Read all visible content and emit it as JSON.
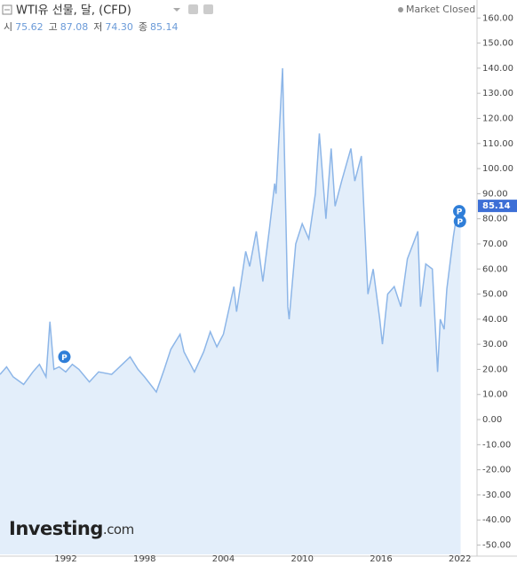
{
  "chart_data": {
    "type": "area",
    "title": "WTI유 선물, 달, (CFD)",
    "status": "Market Closed",
    "ohlc": [
      {
        "label": "시",
        "value": "75.62"
      },
      {
        "label": "고",
        "value": "87.08"
      },
      {
        "label": "저",
        "value": "74.30"
      },
      {
        "label": "종",
        "value": "85.14"
      }
    ],
    "last_price": {
      "value": 85.14,
      "label": "85.14"
    },
    "logo": {
      "main": "Investing",
      "suffix": ".com"
    },
    "color": "#8db6e8",
    "fill": "#e3eefa",
    "x": [
      1987.0,
      1987.5,
      1988.0,
      1988.8,
      1989.5,
      1990.0,
      1990.5,
      1990.8,
      1991.1,
      1991.5,
      1992.0,
      1992.5,
      1993.0,
      1993.8,
      1994.5,
      1995.5,
      1996.3,
      1996.9,
      1997.5,
      1998.0,
      1998.9,
      1999.5,
      2000.0,
      2000.7,
      2001.0,
      2001.8,
      2002.5,
      2003.0,
      2003.5,
      2004.0,
      2004.8,
      2005.0,
      2005.7,
      2006.0,
      2006.5,
      2007.0,
      2007.5,
      2007.9,
      2008.0,
      2008.5,
      2008.9,
      2009.0,
      2009.5,
      2010.0,
      2010.5,
      2011.0,
      2011.3,
      2011.8,
      2012.2,
      2012.5,
      2013.0,
      2013.7,
      2014.0,
      2014.5,
      2015.0,
      2015.4,
      2015.9,
      2016.1,
      2016.5,
      2017.0,
      2017.5,
      2018.0,
      2018.8,
      2019.0,
      2019.4,
      2019.9,
      2020.3,
      2020.5,
      2020.8,
      2021.0,
      2021.5,
      2021.8,
      2022.0,
      2022.05
    ],
    "values": [
      18,
      21,
      17,
      14,
      19,
      22,
      17,
      39,
      20,
      21,
      19,
      22,
      20,
      15,
      19,
      18,
      22,
      25,
      20,
      17,
      11,
      20,
      28,
      34,
      27,
      19,
      27,
      35,
      29,
      34,
      53,
      43,
      67,
      61,
      75,
      55,
      76,
      94,
      90,
      140,
      45,
      40,
      70,
      78,
      72,
      90,
      114,
      80,
      108,
      85,
      95,
      108,
      95,
      105,
      50,
      60,
      40,
      30,
      50,
      53,
      45,
      64,
      75,
      45,
      62,
      60,
      19,
      40,
      36,
      52,
      73,
      83,
      80,
      85.14
    ],
    "markers": [
      {
        "x": 1991.9,
        "y": 25,
        "label": "P"
      },
      {
        "x": 2021.95,
        "y": 83,
        "label": "P"
      },
      {
        "x": 2022.0,
        "y": 79,
        "label": "P"
      }
    ],
    "xlim": [
      1987.0,
      2023.3
    ],
    "ylim": [
      -53.7,
      165.4
    ],
    "xticks": [
      1992,
      1998,
      2004,
      2010,
      2016,
      2022
    ],
    "yticks": [
      {
        "value": 160,
        "label": "160.00"
      },
      {
        "value": 150,
        "label": "150.00"
      },
      {
        "value": 140,
        "label": "140.00"
      },
      {
        "value": 130,
        "label": "130.00"
      },
      {
        "value": 120,
        "label": "120.00"
      },
      {
        "value": 110,
        "label": "110.00"
      },
      {
        "value": 100,
        "label": "100.00"
      },
      {
        "value": 90,
        "label": "90.00"
      },
      {
        "value": 80,
        "label": "80.00"
      },
      {
        "value": 70,
        "label": "70.00"
      },
      {
        "value": 60,
        "label": "60.00"
      },
      {
        "value": 50,
        "label": "50.00"
      },
      {
        "value": 40,
        "label": "40.00"
      },
      {
        "value": 30,
        "label": "30.00"
      },
      {
        "value": 20,
        "label": "20.00"
      },
      {
        "value": 10,
        "label": "10.00"
      },
      {
        "value": 0,
        "label": "0.00"
      },
      {
        "value": -10,
        "label": "-10.00"
      },
      {
        "value": -20,
        "label": "-20.00"
      },
      {
        "value": -30,
        "label": "-30.00"
      },
      {
        "value": -40,
        "label": "-40.00"
      },
      {
        "value": -50,
        "label": "-50.00"
      }
    ]
  }
}
